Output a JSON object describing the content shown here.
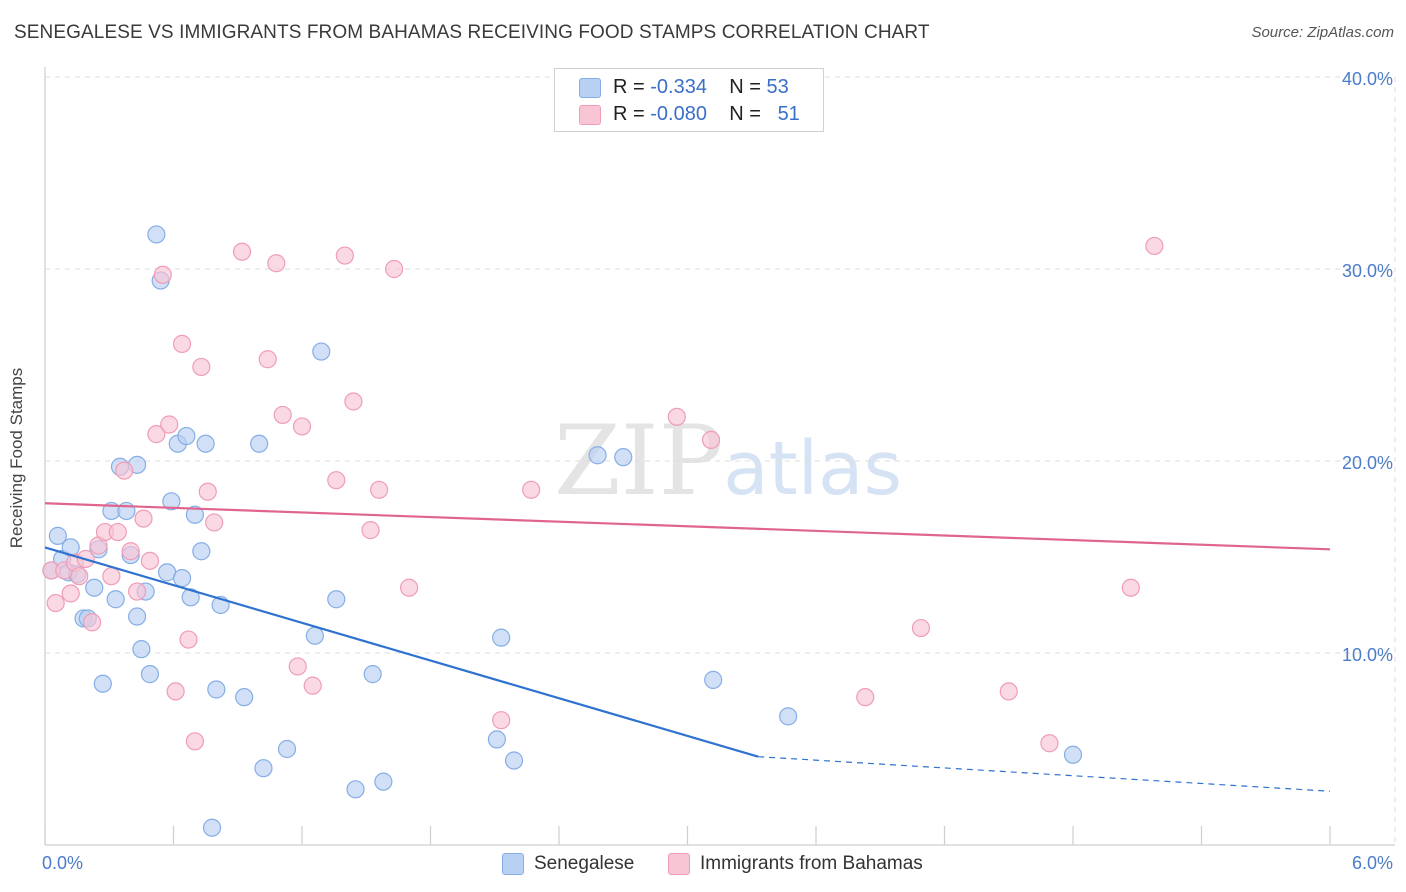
{
  "title": "SENEGALESE VS IMMIGRANTS FROM BAHAMAS RECEIVING FOOD STAMPS CORRELATION CHART",
  "source": "Source: ZipAtlas.com",
  "watermark": {
    "zip": "ZIP",
    "atlas": "atlas"
  },
  "legend_top": {
    "rows": [
      {
        "r_label": "R =",
        "r_value": "-0.334",
        "n_label": "N =",
        "n_value": "53",
        "color": "#a9c7ef"
      },
      {
        "r_label": "R =",
        "r_value": "-0.080",
        "n_label": "N =",
        "n_value": "51",
        "color": "#f5b8cb"
      }
    ]
  },
  "legend_bottom": [
    {
      "label": "Senegalese",
      "color": "#a9c7ef"
    },
    {
      "label": "Immigrants from Bahamas",
      "color": "#f5b8cb"
    }
  ],
  "colors": {
    "blue_fill": "#b8d0f1",
    "blue_stroke": "#86aee6",
    "blue_line": "#2f72cf",
    "pink_fill": "#f8c5d5",
    "pink_stroke": "#ef9db6",
    "pink_line": "#e0658e",
    "grid": "#dcdcdc",
    "axis": "#cfcfcf",
    "tick_text": "#4a7cc9"
  },
  "chart_data": {
    "type": "scatter",
    "title": "SENEGALESE VS IMMIGRANTS FROM BAHAMAS RECEIVING FOOD STAMPS CORRELATION CHART",
    "xlabel": "",
    "ylabel": "Receiving Food Stamps",
    "xlim": [
      0,
      6
    ],
    "ylim": [
      0,
      40
    ],
    "x_ticks": [
      {
        "value": 0,
        "label": "0.0%"
      },
      {
        "value": 6,
        "label": "6.0%"
      }
    ],
    "y_ticks": [
      {
        "value": 10,
        "label": "10.0%"
      },
      {
        "value": 20,
        "label": "20.0%"
      },
      {
        "value": 30,
        "label": "30.0%"
      },
      {
        "value": 40,
        "label": "40.0%"
      }
    ],
    "grid": true,
    "legend_position": "bottom",
    "series": [
      {
        "name": "Senegalese",
        "color": "#a9c7ef",
        "stats": {
          "R": -0.334,
          "N": 53
        },
        "trend": {
          "x_start": 0.0,
          "y_start": 15.5,
          "x_end": 3.33,
          "y_end": 4.6,
          "dashed_to_x": 6.0,
          "dashed_to_y": 2.8
        },
        "points": [
          [
            0.03,
            14.3
          ],
          [
            0.06,
            16.1
          ],
          [
            0.08,
            14.9
          ],
          [
            0.11,
            14.2
          ],
          [
            0.12,
            15.5
          ],
          [
            0.15,
            14.1
          ],
          [
            0.18,
            11.8
          ],
          [
            0.2,
            11.8
          ],
          [
            0.23,
            13.4
          ],
          [
            0.25,
            15.4
          ],
          [
            0.27,
            8.4
          ],
          [
            0.31,
            17.4
          ],
          [
            0.33,
            12.8
          ],
          [
            0.35,
            19.7
          ],
          [
            0.38,
            17.4
          ],
          [
            0.4,
            15.1
          ],
          [
            0.43,
            19.8
          ],
          [
            0.45,
            10.2
          ],
          [
            0.47,
            13.2
          ],
          [
            0.49,
            8.9
          ],
          [
            0.52,
            31.8
          ],
          [
            0.54,
            29.4
          ],
          [
            0.57,
            14.2
          ],
          [
            0.59,
            17.9
          ],
          [
            0.62,
            20.9
          ],
          [
            0.64,
            13.9
          ],
          [
            0.66,
            21.3
          ],
          [
            0.68,
            12.9
          ],
          [
            0.7,
            17.2
          ],
          [
            0.73,
            15.3
          ],
          [
            0.75,
            20.9
          ],
          [
            0.78,
            0.9
          ],
          [
            0.8,
            8.1
          ],
          [
            0.82,
            12.5
          ],
          [
            0.93,
            7.7
          ],
          [
            1.0,
            20.9
          ],
          [
            1.02,
            4.0
          ],
          [
            1.13,
            5.0
          ],
          [
            1.26,
            10.9
          ],
          [
            1.29,
            25.7
          ],
          [
            1.36,
            12.8
          ],
          [
            1.45,
            2.9
          ],
          [
            1.53,
            8.9
          ],
          [
            1.58,
            3.3
          ],
          [
            2.11,
            5.5
          ],
          [
            2.13,
            10.8
          ],
          [
            2.19,
            4.4
          ],
          [
            2.58,
            20.3
          ],
          [
            2.7,
            20.2
          ],
          [
            3.12,
            8.6
          ],
          [
            3.47,
            6.7
          ],
          [
            4.8,
            4.7
          ],
          [
            0.43,
            11.9
          ]
        ]
      },
      {
        "name": "Immigrants from Bahamas",
        "color": "#f5b8cb",
        "stats": {
          "R": -0.08,
          "N": 51
        },
        "trend": {
          "x_start": 0.0,
          "y_start": 17.8,
          "x_end": 6.0,
          "y_end": 15.4
        },
        "points": [
          [
            0.03,
            14.3
          ],
          [
            0.05,
            12.6
          ],
          [
            0.09,
            14.3
          ],
          [
            0.12,
            13.1
          ],
          [
            0.14,
            14.7
          ],
          [
            0.16,
            14.0
          ],
          [
            0.19,
            14.9
          ],
          [
            0.22,
            11.6
          ],
          [
            0.25,
            15.6
          ],
          [
            0.28,
            16.3
          ],
          [
            0.31,
            14.0
          ],
          [
            0.34,
            16.3
          ],
          [
            0.37,
            19.5
          ],
          [
            0.4,
            15.3
          ],
          [
            0.43,
            13.2
          ],
          [
            0.46,
            17.0
          ],
          [
            0.49,
            14.8
          ],
          [
            0.52,
            21.4
          ],
          [
            0.55,
            29.7
          ],
          [
            0.58,
            21.9
          ],
          [
            0.61,
            8.0
          ],
          [
            0.64,
            26.1
          ],
          [
            0.67,
            10.7
          ],
          [
            0.7,
            5.4
          ],
          [
            0.73,
            24.9
          ],
          [
            0.76,
            18.4
          ],
          [
            0.79,
            16.8
          ],
          [
            0.92,
            30.9
          ],
          [
            1.04,
            25.3
          ],
          [
            1.08,
            30.3
          ],
          [
            1.11,
            22.4
          ],
          [
            1.18,
            9.3
          ],
          [
            1.2,
            21.8
          ],
          [
            1.25,
            8.3
          ],
          [
            1.36,
            19.0
          ],
          [
            1.4,
            30.7
          ],
          [
            1.44,
            23.1
          ],
          [
            1.52,
            16.4
          ],
          [
            1.56,
            18.5
          ],
          [
            1.63,
            30.0
          ],
          [
            1.7,
            13.4
          ],
          [
            2.13,
            6.5
          ],
          [
            2.27,
            18.5
          ],
          [
            2.95,
            22.3
          ],
          [
            3.11,
            21.1
          ],
          [
            3.83,
            7.7
          ],
          [
            4.09,
            11.3
          ],
          [
            4.5,
            8.0
          ],
          [
            4.69,
            5.3
          ],
          [
            5.07,
            13.4
          ],
          [
            5.18,
            31.2
          ]
        ]
      }
    ]
  }
}
